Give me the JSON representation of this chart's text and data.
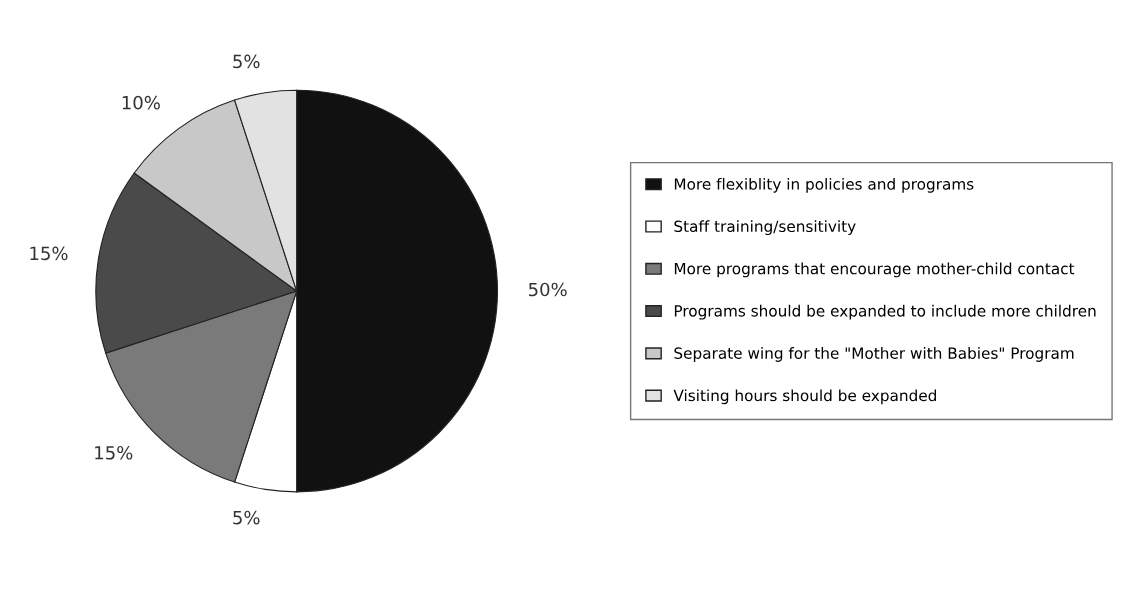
{
  "chart_data": {
    "type": "pie",
    "categories": [
      "More flexiblity in policies and programs",
      "Staff training/sensitivity",
      "More programs that encourage mother-child contact",
      "Programs should be expanded to include more children",
      "Separate wing for the \"Mother with Babies\" Program",
      "Visiting hours should be expanded"
    ],
    "values": [
      50,
      5,
      15,
      15,
      10,
      5
    ],
    "value_labels": [
      "50%",
      "5%",
      "15%",
      "15%",
      "10%",
      "5%"
    ],
    "colors": [
      "#111111",
      "#ffffff",
      "#7a7a7a",
      "#4a4a4a",
      "#c8c8c8",
      "#e2e2e2"
    ],
    "legend": "right"
  }
}
